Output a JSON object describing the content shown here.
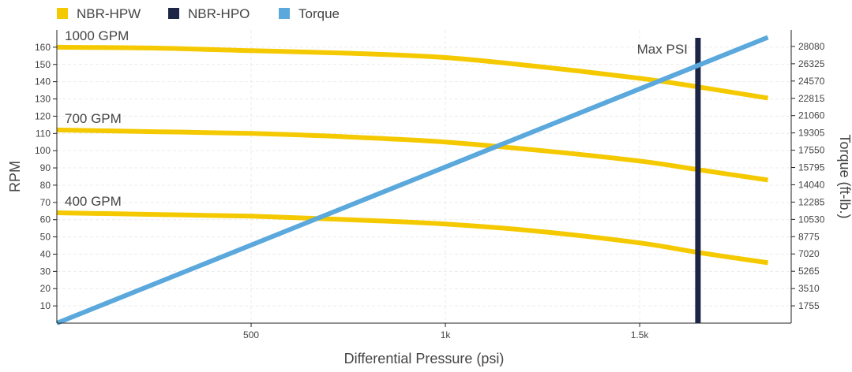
{
  "chart_data": {
    "type": "line",
    "xlabel": "Differential Pressure (psi)",
    "ylabel": "RPM",
    "y2label": "Torque (ft-lb.)",
    "xlim": [
      0,
      1890
    ],
    "ylim": [
      0,
      170
    ],
    "y2lim": [
      0,
      29755
    ],
    "x_ticks": [
      {
        "value": 500,
        "label": "500"
      },
      {
        "value": 1000,
        "label": "1k"
      },
      {
        "value": 1500,
        "label": "1.5k"
      }
    ],
    "y_ticks": [
      10,
      20,
      30,
      40,
      50,
      60,
      70,
      80,
      90,
      100,
      110,
      120,
      130,
      140,
      150,
      160
    ],
    "y2_ticks": [
      1755,
      3510,
      5265,
      7020,
      8775,
      10530,
      12285,
      14040,
      15795,
      17550,
      19305,
      21060,
      22815,
      24570,
      26325,
      28080
    ],
    "grid": true,
    "legend_position": "top-left",
    "legend": [
      {
        "name": "NBR-HPW",
        "color": "#f5c900"
      },
      {
        "name": "NBR-HPO",
        "color": "#1c2545"
      },
      {
        "name": "Torque",
        "color": "#5aa8dc"
      }
    ],
    "series": [
      {
        "legend": "NBR-HPW",
        "label": "1000 GPM",
        "color": "#f5c900",
        "axis": "left",
        "x": [
          0,
          250,
          500,
          750,
          1000,
          1250,
          1500,
          1650,
          1830
        ],
        "y": [
          160,
          159.5,
          158,
          156.5,
          154,
          148.5,
          142,
          137,
          130.5
        ]
      },
      {
        "legend": "NBR-HPW",
        "label": "700 GPM",
        "color": "#f5c900",
        "axis": "left",
        "x": [
          0,
          250,
          500,
          750,
          1000,
          1250,
          1500,
          1650,
          1830
        ],
        "y": [
          112,
          111,
          110,
          108,
          105,
          100,
          94,
          89,
          83
        ]
      },
      {
        "legend": "NBR-HPW",
        "label": "400 GPM",
        "color": "#f5c900",
        "axis": "left",
        "x": [
          0,
          250,
          500,
          750,
          1000,
          1250,
          1500,
          1650,
          1830
        ],
        "y": [
          64,
          63,
          62,
          60,
          57.5,
          53,
          46.5,
          41,
          35
        ]
      },
      {
        "legend": "Torque",
        "color": "#5aa8dc",
        "axis": "right",
        "x": [
          0,
          1830
        ],
        "y": [
          0,
          29000
        ]
      }
    ],
    "annotations": [
      {
        "text": "Max PSI",
        "x": 1650,
        "color": "#1c2545",
        "legend": "NBR-HPO"
      }
    ]
  }
}
